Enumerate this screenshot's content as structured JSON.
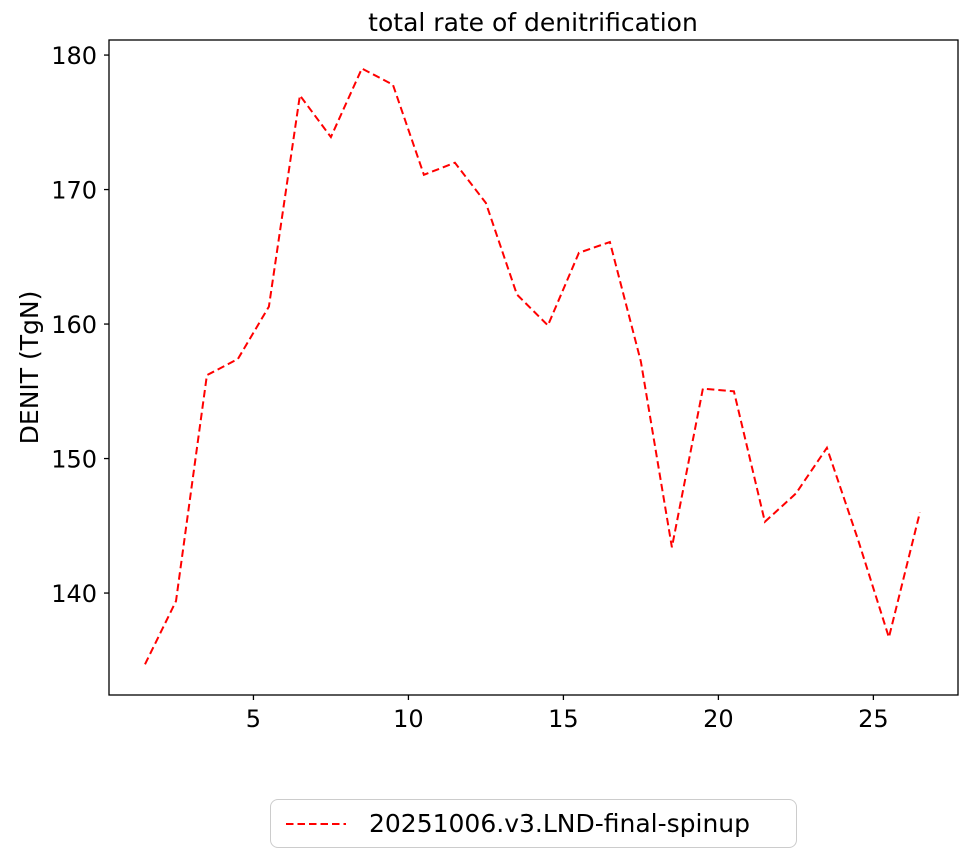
{
  "figure": {
    "background": "#ffffff",
    "frame_color": "#000000"
  },
  "chart_data": {
    "type": "line",
    "title": "total rate of denitrification",
    "xlabel": "",
    "ylabel": "DENIT (TgN)",
    "x": [
      1.5,
      2.5,
      3.5,
      4.5,
      5.5,
      6.5,
      7.5,
      8.5,
      9.5,
      10.5,
      11.5,
      12.5,
      13.5,
      14.5,
      15.5,
      16.5,
      17.5,
      18.5,
      19.5,
      20.5,
      21.5,
      22.5,
      23.5,
      24.5,
      25.5,
      26.5
    ],
    "series": [
      {
        "name": "20251006.v3.LND-final-spinup",
        "color": "#ff0000",
        "linestyle": "dashed",
        "values": [
          134.7,
          139.4,
          156.2,
          157.4,
          161.3,
          177.0,
          173.9,
          179.0,
          177.8,
          171.1,
          172.0,
          169.0,
          162.2,
          159.9,
          165.3,
          166.1,
          157.2,
          143.4,
          155.2,
          155.0,
          145.3,
          147.4,
          150.8,
          144.0,
          136.7,
          146.0
        ]
      }
    ],
    "xticks": [
      5,
      10,
      15,
      20,
      25
    ],
    "yticks": [
      140,
      150,
      160,
      170,
      180
    ],
    "xlim": [
      0.34,
      27.73
    ],
    "ylim": [
      132.42,
      181.12
    ],
    "grid": false,
    "legend_position": "below-center"
  },
  "legend": {
    "label": "20251006.v3.LND-final-spinup"
  }
}
